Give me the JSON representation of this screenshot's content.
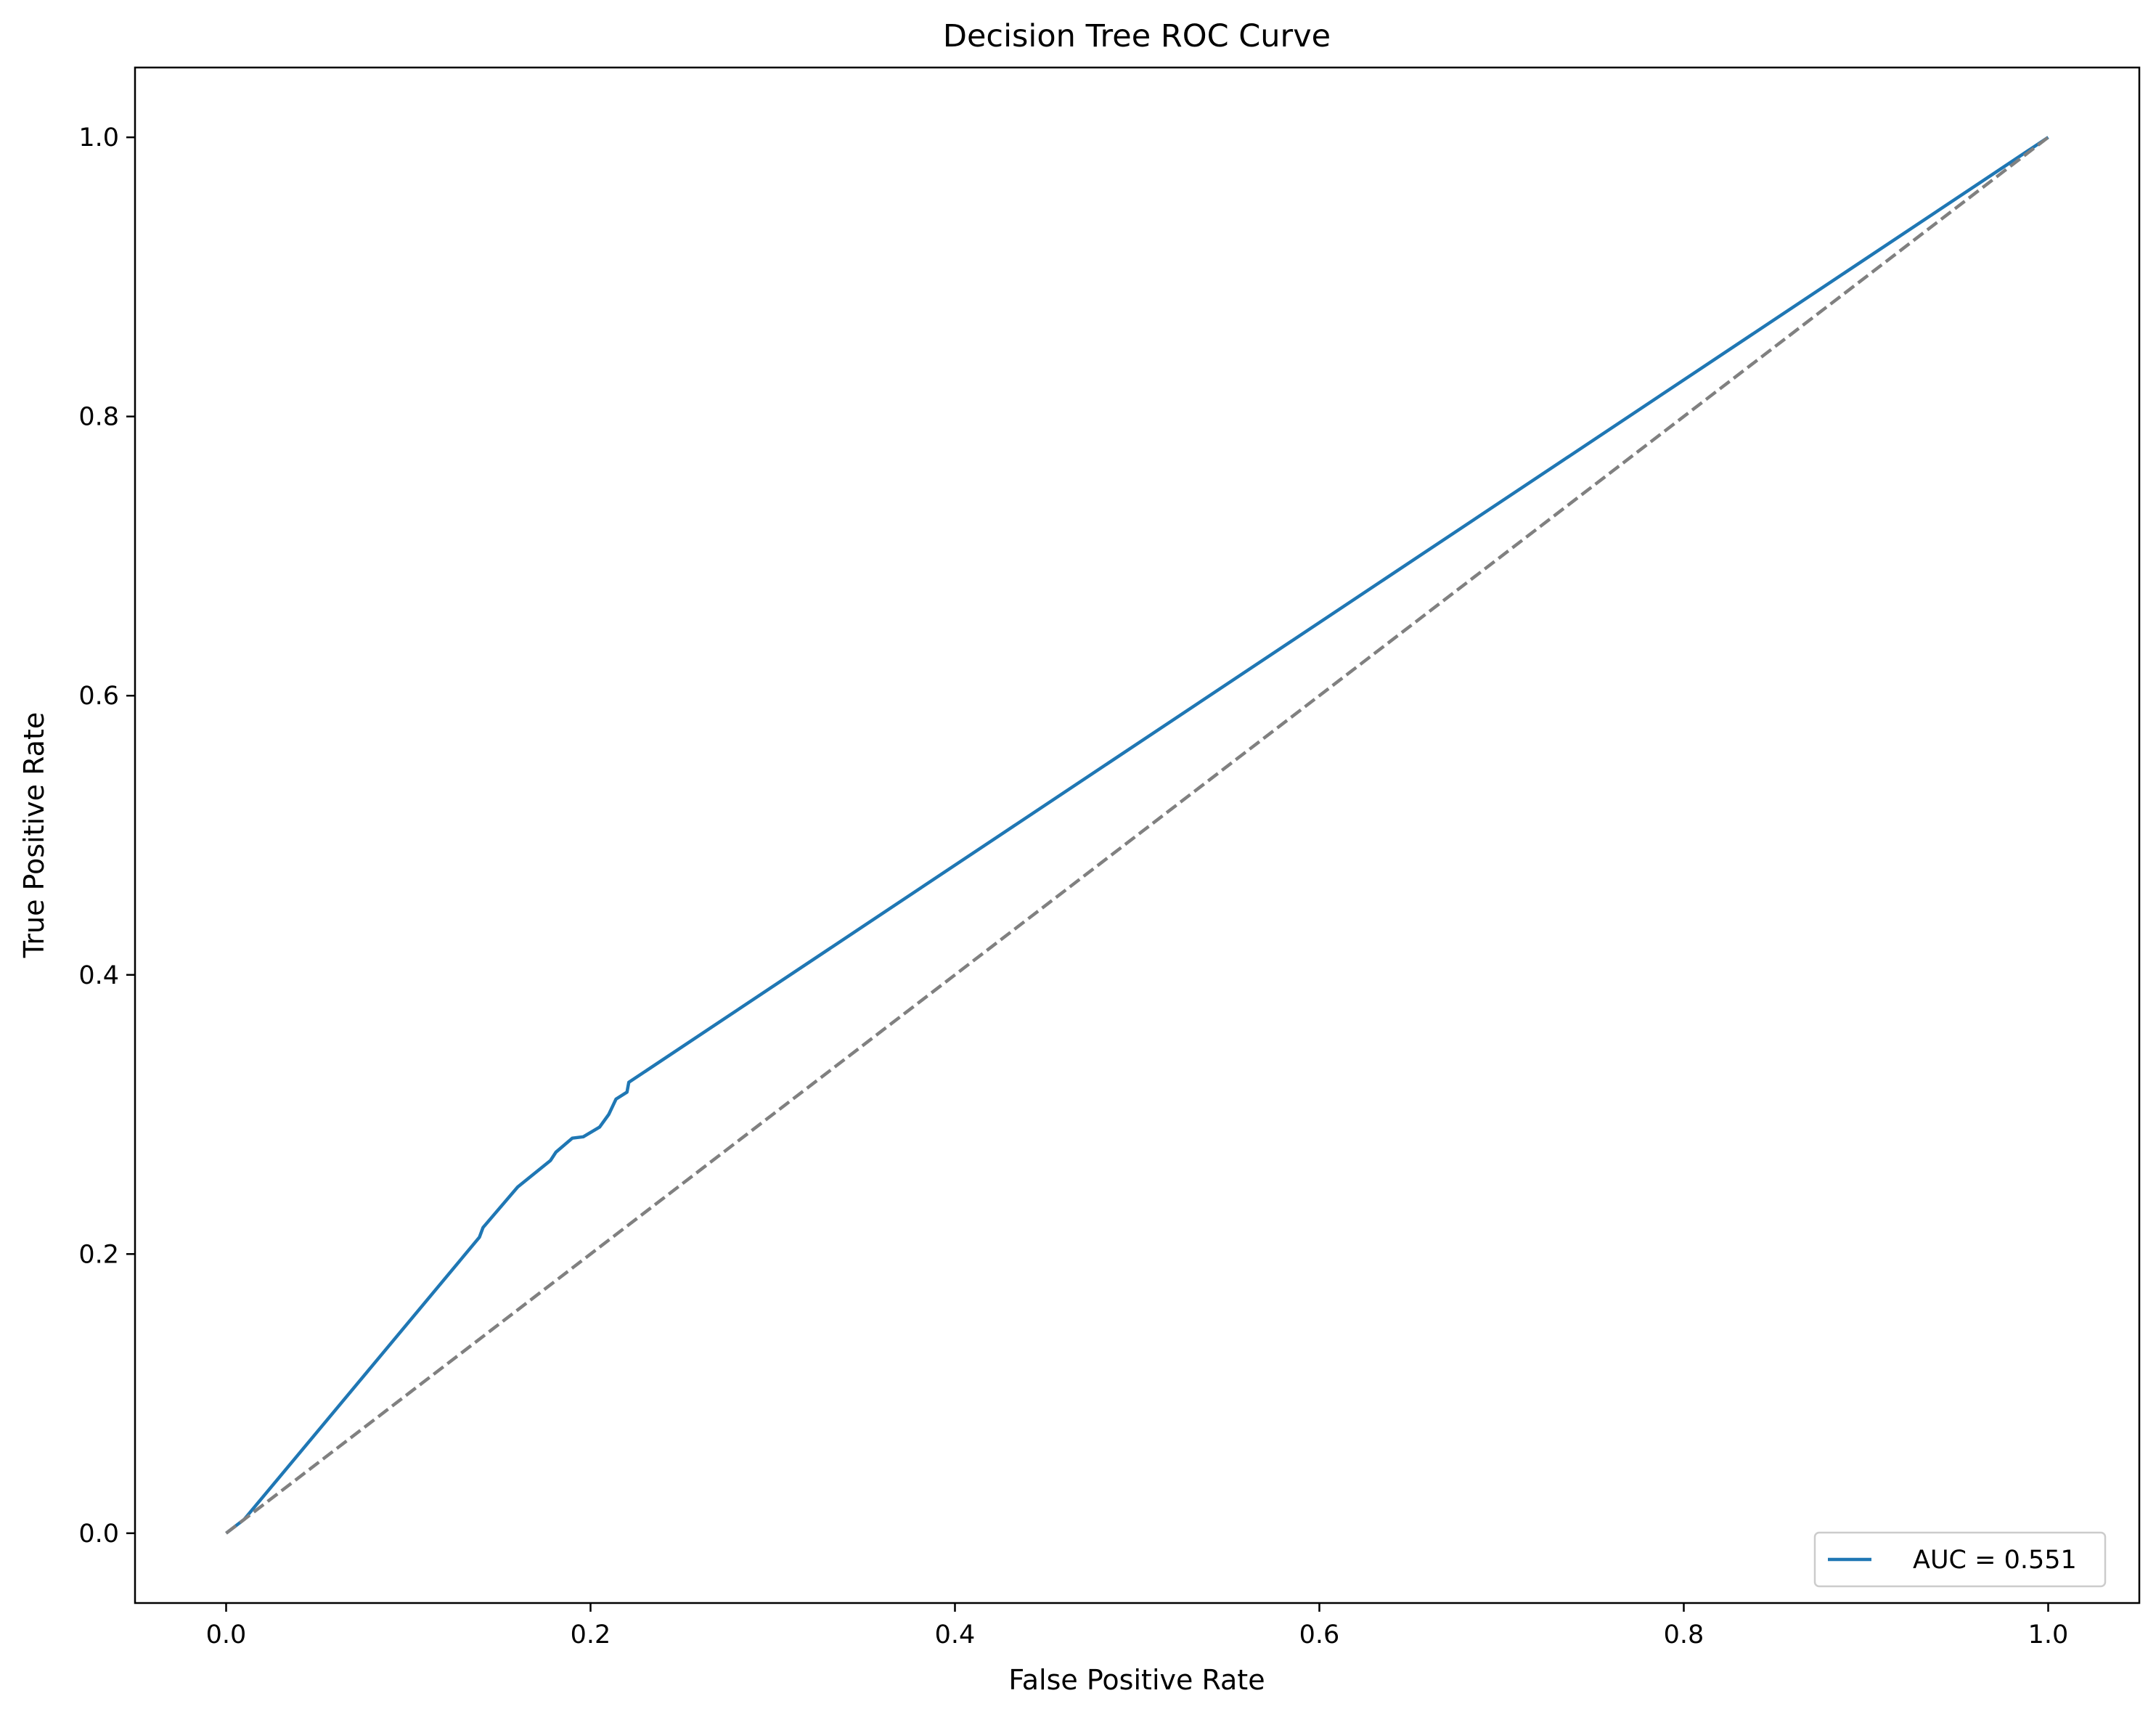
{
  "chart_data": {
    "type": "line",
    "title": "Decision Tree ROC Curve",
    "xlabel": "False Positive Rate",
    "ylabel": "True Positive Rate",
    "xlim": [
      -0.05,
      1.05
    ],
    "ylim": [
      -0.05,
      1.05
    ],
    "xticks": [
      0.0,
      0.2,
      0.4,
      0.6,
      0.8,
      1.0
    ],
    "yticks": [
      0.0,
      0.2,
      0.4,
      0.6,
      0.8,
      1.0
    ],
    "xtick_labels": [
      "0.0",
      "0.2",
      "0.4",
      "0.6",
      "0.8",
      "1.0"
    ],
    "ytick_labels": [
      "0.0",
      "0.2",
      "0.4",
      "0.6",
      "0.8",
      "1.0"
    ],
    "grid": false,
    "legend_placement": "lower right",
    "series": [
      {
        "name": "AUC = 0.551",
        "color": "#1f77b4",
        "style": "solid",
        "x": [
          0.0,
          0.01,
          0.139,
          0.141,
          0.16,
          0.178,
          0.181,
          0.19,
          0.196,
          0.205,
          0.21,
          0.214,
          0.22,
          0.221,
          1.0
        ],
        "y": [
          0.0,
          0.01,
          0.212,
          0.219,
          0.248,
          0.267,
          0.273,
          0.283,
          0.284,
          0.291,
          0.3,
          0.311,
          0.316,
          0.323,
          1.0
        ]
      },
      {
        "name": "",
        "color": "#808080",
        "style": "dashed",
        "x": [
          0.0,
          1.0
        ],
        "y": [
          0.0,
          1.0
        ]
      }
    ]
  }
}
